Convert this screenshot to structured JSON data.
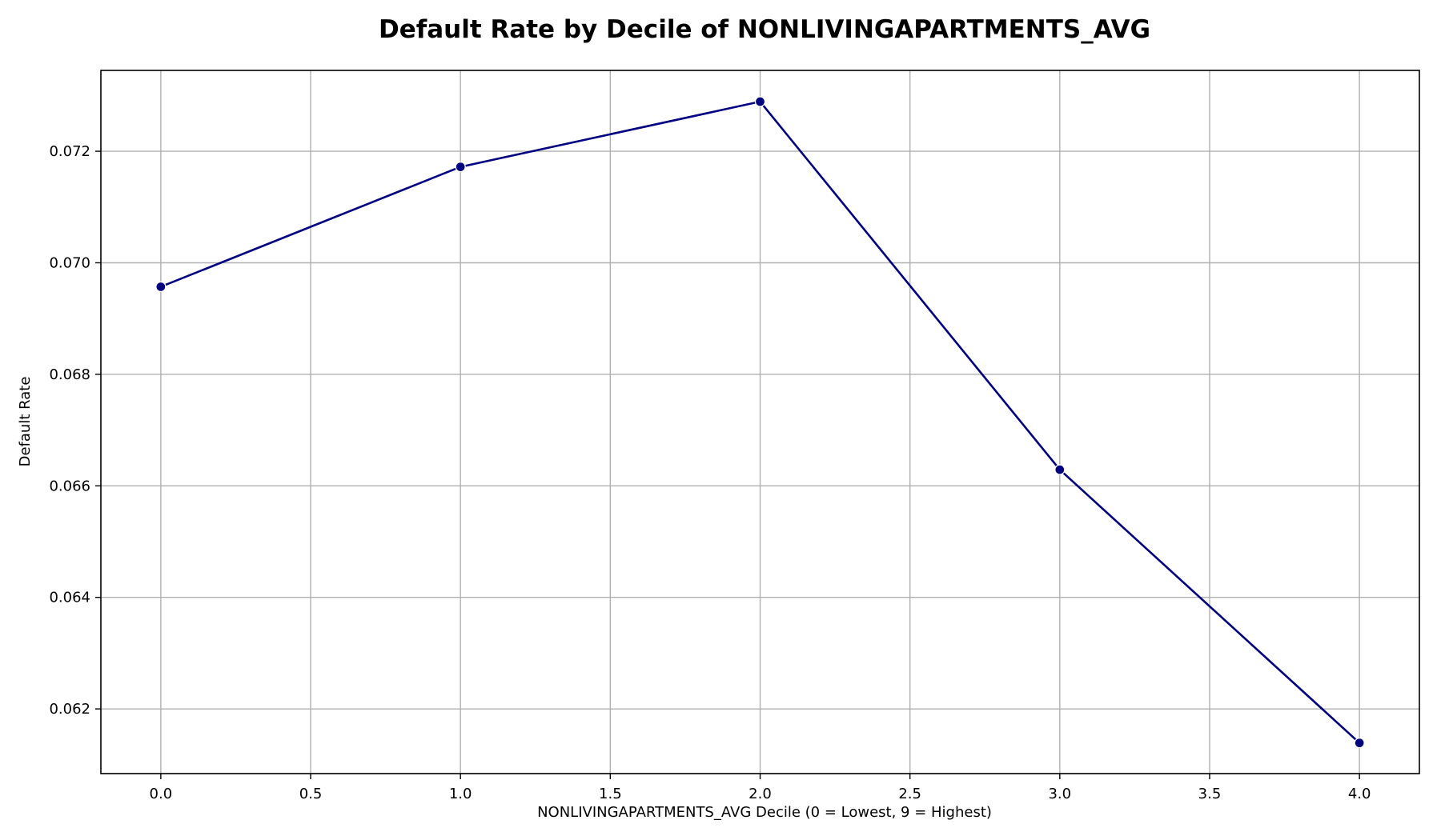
{
  "chart_data": {
    "type": "line",
    "title": "Default Rate by Decile of NONLIVINGAPARTMENTS_AVG",
    "xlabel": "NONLIVINGAPARTMENTS_AVG Decile (0 = Lowest, 9 = Highest)",
    "ylabel": "Default Rate",
    "x": [
      0,
      1,
      2,
      3,
      4
    ],
    "series": [
      {
        "values": [
          0.06957,
          0.07172,
          0.07289,
          0.06629,
          0.06139
        ]
      }
    ],
    "xlim": [
      -0.2,
      4.2
    ],
    "ylim": [
      0.06084,
      0.07345
    ],
    "x_ticks": [
      "0.0",
      "0.5",
      "1.0",
      "1.5",
      "2.0",
      "2.5",
      "3.0",
      "3.5",
      "4.0"
    ],
    "y_ticks": [
      "0.062",
      "0.064",
      "0.066",
      "0.068",
      "0.070",
      "0.072"
    ],
    "grid": true,
    "colors": {
      "line": "#000080",
      "marker": "#000080",
      "marker_edge": "#ffffff",
      "grid": "#b0b0b0",
      "axes": "#000000"
    }
  }
}
